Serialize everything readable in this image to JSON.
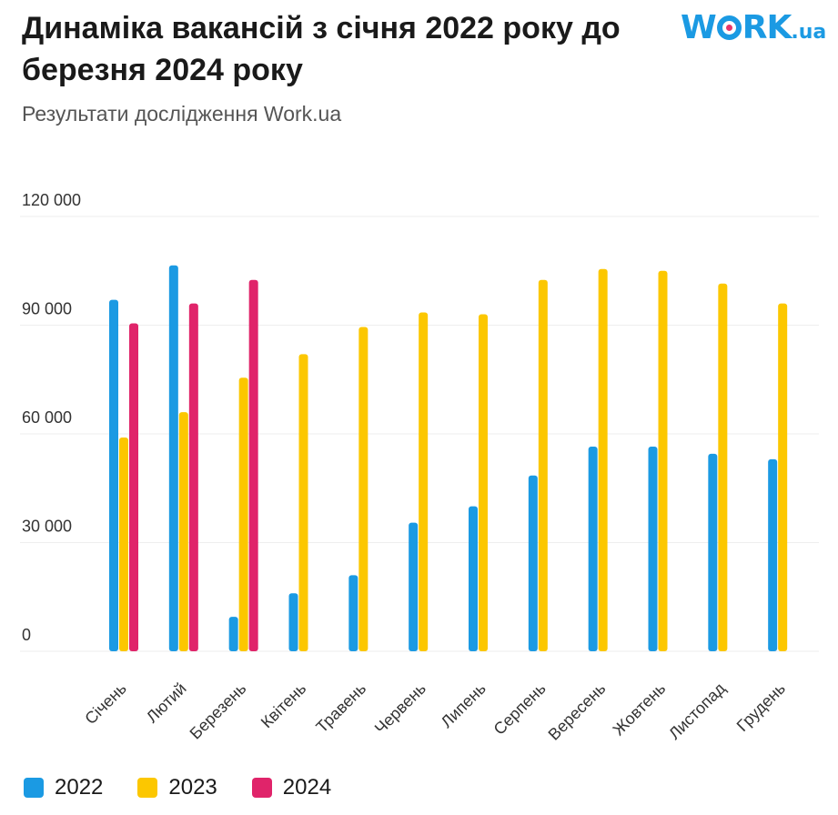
{
  "header": {
    "title": "Динаміка вакансій з січня 2022 року до березня 2024 року",
    "subtitle": "Результати дослідження Work.ua"
  },
  "logo": {
    "text_work": "WORK",
    "text_ua": ".ua",
    "brand_color": "#1b9ae3",
    "dot_color": "#e8356b"
  },
  "chart_data": {
    "type": "bar",
    "categories": [
      "Січень",
      "Лютий",
      "Березень",
      "Квітень",
      "Травень",
      "Червень",
      "Липень",
      "Серпень",
      "Вересень",
      "Жовтень",
      "Листопад",
      "Грудень"
    ],
    "series": [
      {
        "name": "2022",
        "color": "#1b9ae3",
        "values": [
          97000,
          106500,
          9500,
          16000,
          21000,
          35500,
          40000,
          48500,
          56500,
          56500,
          54500,
          53000
        ]
      },
      {
        "name": "2023",
        "color": "#fcc700",
        "values": [
          59000,
          66000,
          75500,
          82000,
          89500,
          93500,
          93000,
          102500,
          105500,
          105000,
          101500,
          96000
        ]
      },
      {
        "name": "2024",
        "color": "#e0246a",
        "values": [
          90500,
          96000,
          102500,
          null,
          null,
          null,
          null,
          null,
          null,
          null,
          null,
          null
        ]
      }
    ],
    "y_ticks": [
      0,
      30000,
      60000,
      90000,
      120000
    ],
    "y_tick_labels": [
      "0",
      "30 000",
      "60 000",
      "90 000",
      "120 000"
    ],
    "ylim": [
      0,
      120000
    ],
    "grid": true,
    "legend_position": "bottom-left"
  }
}
